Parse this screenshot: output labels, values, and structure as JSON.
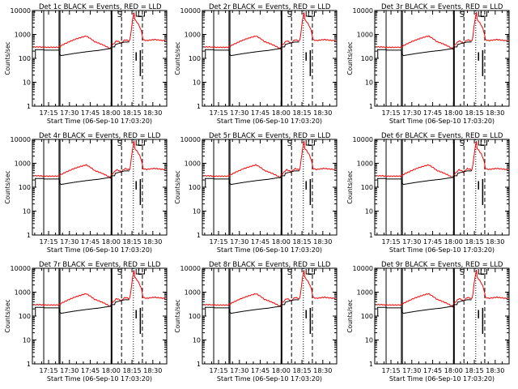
{
  "figure": {
    "background": "#ffffff",
    "black_color": "#000000",
    "red_color": "#ff0000"
  },
  "chart_data": [
    {
      "type": "line",
      "title": "Det 1c BLACK = Events, RED = LLD",
      "xlabel": "Start Time (06-Sep-10 17:03:20)",
      "ylabel": "Counts/sec",
      "x_ticks": [
        "17:15",
        "17:30",
        "17:45",
        "18:00",
        "18:15",
        "18:30"
      ],
      "y_ticks": [
        "1",
        "10",
        "100",
        "1000",
        "10000"
      ],
      "ylim": [
        1,
        10000
      ],
      "flag_labels": [
        "S",
        "L"
      ],
      "series": [
        {
          "name": "Events",
          "color": "#000000"
        },
        {
          "name": "LLD",
          "color": "#ff0000"
        }
      ]
    },
    {
      "type": "line",
      "title": "Det 2r BLACK = Events, RED = LLD",
      "xlabel": "Start Time (06-Sep-10 17:03:20)",
      "ylabel": "Counts/sec",
      "x_ticks": [
        "17:15",
        "17:30",
        "17:45",
        "18:00",
        "18:15",
        "18:30"
      ],
      "y_ticks": [
        "1",
        "10",
        "100",
        "1000",
        "10000"
      ],
      "ylim": [
        1,
        10000
      ],
      "flag_labels": [
        "S",
        "L"
      ],
      "series": [
        {
          "name": "Events",
          "color": "#000000"
        },
        {
          "name": "LLD",
          "color": "#ff0000"
        }
      ]
    },
    {
      "type": "line",
      "title": "Det 3r BLACK = Events, RED = LLD",
      "xlabel": "Start Time (06-Sep-10 17:03:20)",
      "ylabel": "Counts/sec",
      "x_ticks": [
        "17:15",
        "17:30",
        "17:45",
        "18:00",
        "18:15",
        "18:30"
      ],
      "y_ticks": [
        "1",
        "10",
        "100",
        "1000",
        "10000"
      ],
      "ylim": [
        1,
        10000
      ],
      "flag_labels": [
        "S",
        "L"
      ],
      "series": [
        {
          "name": "Events",
          "color": "#000000"
        },
        {
          "name": "LLD",
          "color": "#ff0000"
        }
      ]
    },
    {
      "type": "line",
      "title": "Det 4r BLACK = Events, RED = LLD",
      "xlabel": "Start Time (06-Sep-10 17:03:20)",
      "ylabel": "Counts/sec",
      "x_ticks": [
        "17:15",
        "17:30",
        "17:45",
        "18:00",
        "18:15",
        "18:30"
      ],
      "y_ticks": [
        "1",
        "10",
        "100",
        "1000",
        "10000"
      ],
      "ylim": [
        1,
        10000
      ],
      "flag_labels": [
        "S",
        "L"
      ],
      "series": [
        {
          "name": "Events",
          "color": "#000000"
        },
        {
          "name": "LLD",
          "color": "#ff0000"
        }
      ]
    },
    {
      "type": "line",
      "title": "Det 5r BLACK = Events, RED = LLD",
      "xlabel": "Start Time (06-Sep-10 17:03:20)",
      "ylabel": "Counts/sec",
      "x_ticks": [
        "17:15",
        "17:30",
        "17:45",
        "18:00",
        "18:15",
        "18:30"
      ],
      "y_ticks": [
        "1",
        "10",
        "100",
        "1000",
        "10000"
      ],
      "ylim": [
        1,
        10000
      ],
      "flag_labels": [
        "S",
        "L"
      ],
      "series": [
        {
          "name": "Events",
          "color": "#000000"
        },
        {
          "name": "LLD",
          "color": "#ff0000"
        }
      ]
    },
    {
      "type": "line",
      "title": "Det 6r BLACK = Events, RED = LLD",
      "xlabel": "Start Time (06-Sep-10 17:03:20)",
      "ylabel": "Counts/sec",
      "x_ticks": [
        "17:15",
        "17:30",
        "17:45",
        "18:00",
        "18:15",
        "18:30"
      ],
      "y_ticks": [
        "1",
        "10",
        "100",
        "1000",
        "10000"
      ],
      "ylim": [
        1,
        10000
      ],
      "flag_labels": [
        "S",
        "L"
      ],
      "series": [
        {
          "name": "Events",
          "color": "#000000"
        },
        {
          "name": "LLD",
          "color": "#ff0000"
        }
      ]
    },
    {
      "type": "line",
      "title": "Det 7r BLACK = Events, RED = LLD",
      "xlabel": "Start Time (06-Sep-10 17:03:20)",
      "ylabel": "Counts/sec",
      "x_ticks": [
        "17:15",
        "17:30",
        "17:45",
        "18:00",
        "18:15",
        "18:30"
      ],
      "y_ticks": [
        "1",
        "10",
        "100",
        "1000",
        "10000"
      ],
      "ylim": [
        1,
        10000
      ],
      "flag_labels": [
        "S",
        "L"
      ],
      "series": [
        {
          "name": "Events",
          "color": "#000000"
        },
        {
          "name": "LLD",
          "color": "#ff0000"
        }
      ]
    },
    {
      "type": "line",
      "title": "Det 8r BLACK = Events, RED = LLD",
      "xlabel": "Start Time (06-Sep-10 17:03:20)",
      "ylabel": "Counts/sec",
      "x_ticks": [
        "17:15",
        "17:30",
        "17:45",
        "18:00",
        "18:15",
        "18:30"
      ],
      "y_ticks": [
        "1",
        "10",
        "100",
        "1000",
        "10000"
      ],
      "ylim": [
        1,
        10000
      ],
      "flag_labels": [
        "S",
        "L"
      ],
      "series": [
        {
          "name": "Events",
          "color": "#000000"
        },
        {
          "name": "LLD",
          "color": "#ff0000"
        }
      ]
    },
    {
      "type": "line",
      "title": "Det 9r BLACK = Events, RED = LLD",
      "xlabel": "Start Time (06-Sep-10 17:03:20)",
      "ylabel": "Counts/sec",
      "x_ticks": [
        "17:15",
        "17:30",
        "17:45",
        "18:00",
        "18:15",
        "18:30"
      ],
      "y_ticks": [
        "1",
        "10",
        "100",
        "1000",
        "10000"
      ],
      "ylim": [
        1,
        10000
      ],
      "flag_labels": [
        "S",
        "L"
      ],
      "series": [
        {
          "name": "Events",
          "color": "#000000"
        },
        {
          "name": "LLD",
          "color": "#ff0000"
        }
      ]
    }
  ]
}
